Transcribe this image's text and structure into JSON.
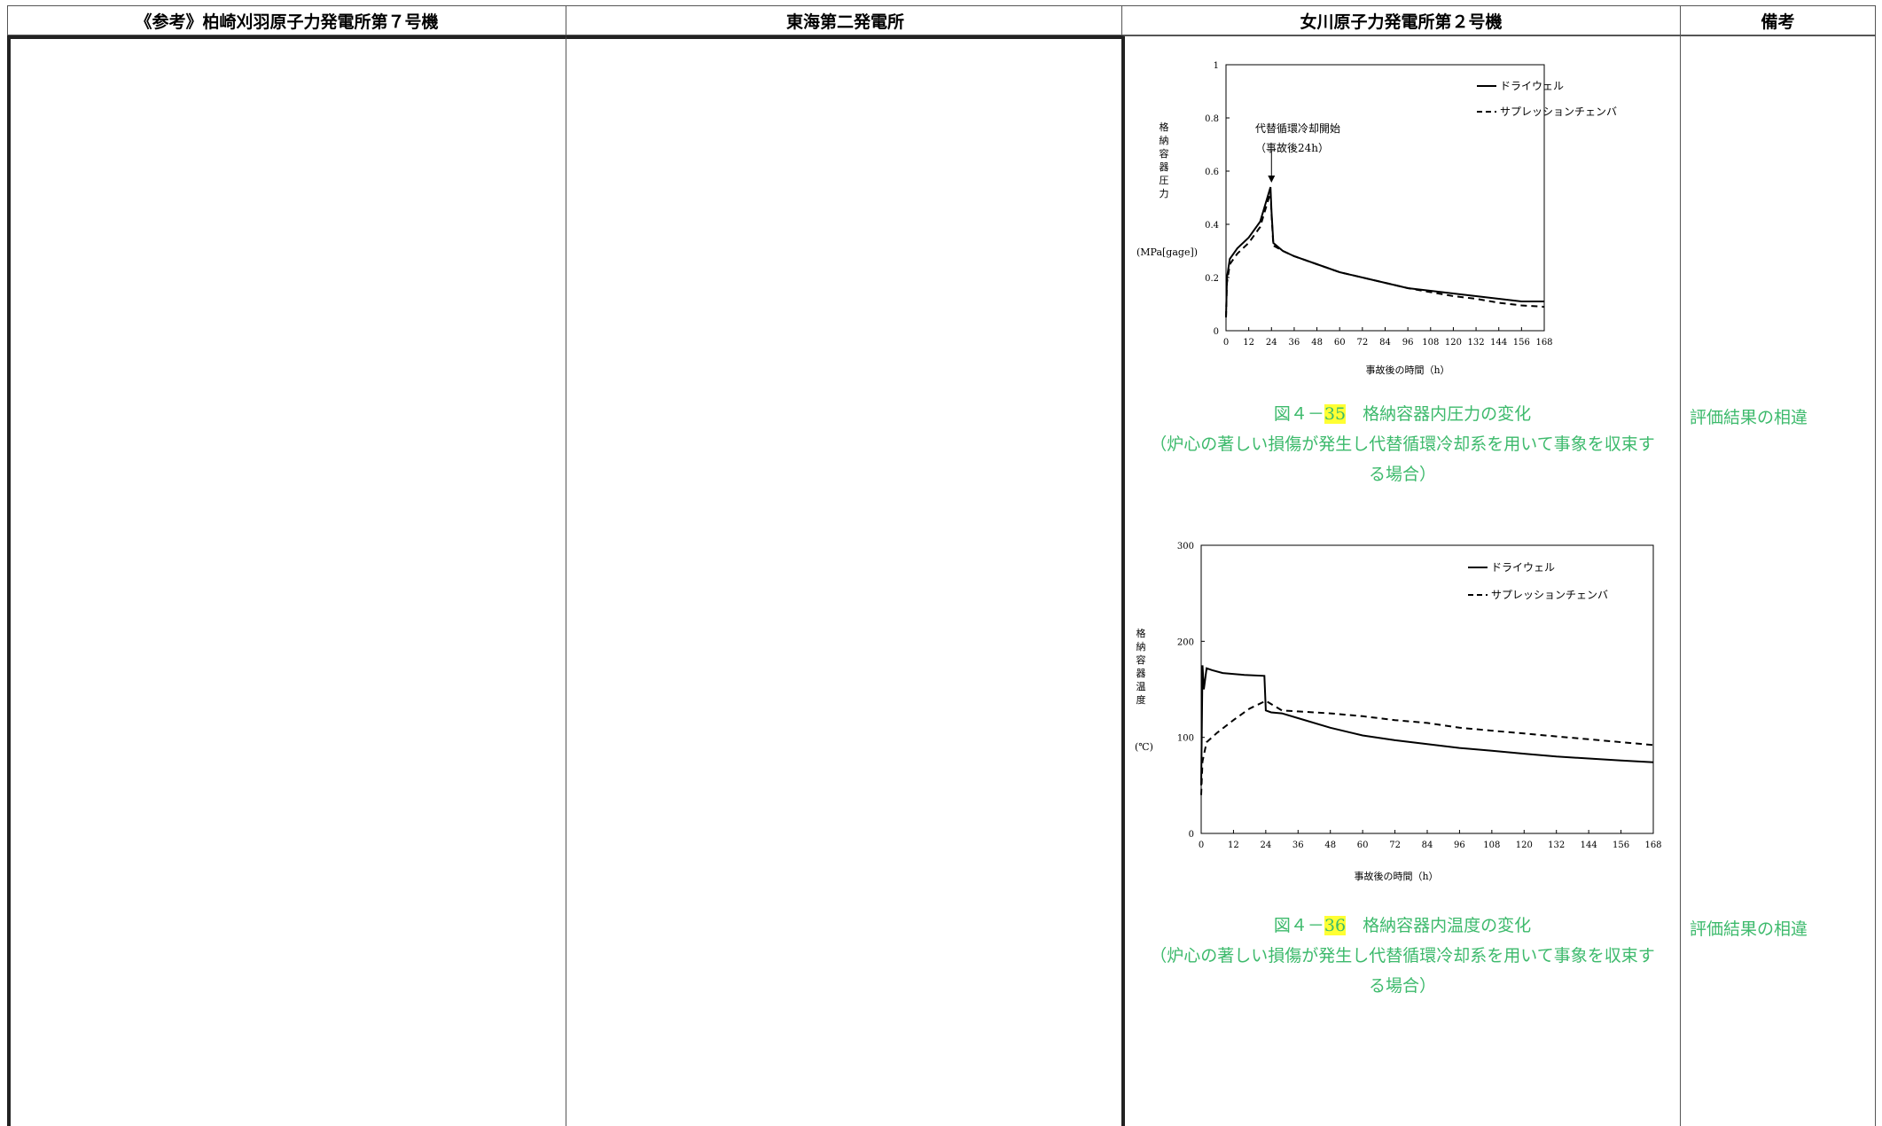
{
  "headers": {
    "col1": "《参考》柏崎刈羽原子力発電所第７号機",
    "col2": "東海第二発電所",
    "col3": "女川原子力発電所第２号機",
    "col4": "備考"
  },
  "figure1": {
    "caption_prefix": "図４－",
    "caption_number": "35",
    "caption_title": "　格納容器内圧力の変化",
    "caption_line2": "（炉心の著しい損傷が発生し代替循環冷却系を用いて事象を収束す",
    "caption_line3": "る場合）",
    "remark": "評価結果の相違"
  },
  "figure2": {
    "caption_prefix": "図４－",
    "caption_number": "36",
    "caption_title": "　格納容器内温度の変化",
    "caption_line2": "（炉心の著しい損傷が発生し代替循環冷却系を用いて事象を収束す",
    "caption_line3": "る場合）",
    "remark": "評価結果の相違"
  },
  "chart_data": [
    {
      "type": "line",
      "xlabel": "事故後の時間（h）",
      "ylabel": "格納容器圧力",
      "yunit": "(MPa[gage])",
      "xlim": [
        0,
        168
      ],
      "ylim": [
        0,
        1
      ],
      "xticks": [
        "0",
        "12",
        "24",
        "36",
        "48",
        "60",
        "72",
        "84",
        "96",
        "108",
        "120",
        "132",
        "144",
        "156",
        "168"
      ],
      "yticks": [
        "0",
        "0.2",
        "0.4",
        "0.6",
        "0.8",
        "1"
      ],
      "annotation": [
        "代替循環冷却開始",
        "（事故後24h）"
      ],
      "annotation_x": 24,
      "annotation_y": 0.55,
      "legend_position": "top-right",
      "series": [
        {
          "name": "ドライウェル",
          "style": "solid",
          "x": [
            0,
            0.5,
            2,
            6,
            12,
            18,
            23.5,
            24,
            25,
            30,
            36,
            48,
            60,
            72,
            84,
            96,
            108,
            120,
            132,
            144,
            156,
            168
          ],
          "y": [
            0.05,
            0.2,
            0.27,
            0.31,
            0.35,
            0.41,
            0.54,
            0.45,
            0.33,
            0.3,
            0.28,
            0.25,
            0.22,
            0.2,
            0.18,
            0.16,
            0.15,
            0.14,
            0.13,
            0.12,
            0.11,
            0.11
          ]
        },
        {
          "name": "サプレッションチェンバ",
          "style": "dashed",
          "x": [
            0,
            0.5,
            2,
            6,
            12,
            18,
            23.5,
            24,
            25,
            30,
            36,
            48,
            60,
            72,
            84,
            96,
            108,
            120,
            132,
            144,
            156,
            168
          ],
          "y": [
            0.05,
            0.18,
            0.25,
            0.29,
            0.33,
            0.39,
            0.52,
            0.44,
            0.32,
            0.3,
            0.28,
            0.25,
            0.22,
            0.2,
            0.18,
            0.16,
            0.145,
            0.13,
            0.12,
            0.105,
            0.095,
            0.09
          ]
        }
      ]
    },
    {
      "type": "line",
      "xlabel": "事故後の時間（h）",
      "ylabel": "格納容器温度",
      "yunit": "(℃)",
      "xlim": [
        0,
        168
      ],
      "ylim": [
        0,
        300
      ],
      "xticks": [
        "0",
        "12",
        "24",
        "36",
        "48",
        "60",
        "72",
        "84",
        "96",
        "108",
        "120",
        "132",
        "144",
        "156",
        "168"
      ],
      "yticks": [
        "0",
        "100",
        "200",
        "300"
      ],
      "legend_position": "top-right",
      "series": [
        {
          "name": "ドライウェル",
          "style": "solid",
          "x": [
            0,
            0.5,
            1,
            2,
            4,
            8,
            16,
            23.5,
            24,
            26,
            30,
            36,
            48,
            60,
            72,
            84,
            96,
            108,
            120,
            132,
            144,
            156,
            168
          ],
          "y": [
            50,
            175,
            150,
            172,
            170,
            167,
            165,
            164,
            128,
            126,
            125,
            120,
            110,
            102,
            97,
            93,
            89,
            86,
            83,
            80,
            78,
            76,
            74
          ]
        },
        {
          "name": "サプレッションチェンバ",
          "style": "dashed",
          "x": [
            0,
            0.5,
            2,
            6,
            12,
            18,
            24,
            30,
            36,
            48,
            60,
            72,
            84,
            96,
            108,
            120,
            132,
            144,
            156,
            168
          ],
          "y": [
            40,
            75,
            95,
            105,
            118,
            130,
            138,
            128,
            127,
            125,
            122,
            118,
            115,
            110,
            107,
            104,
            101,
            98,
            95,
            92
          ]
        }
      ]
    }
  ]
}
